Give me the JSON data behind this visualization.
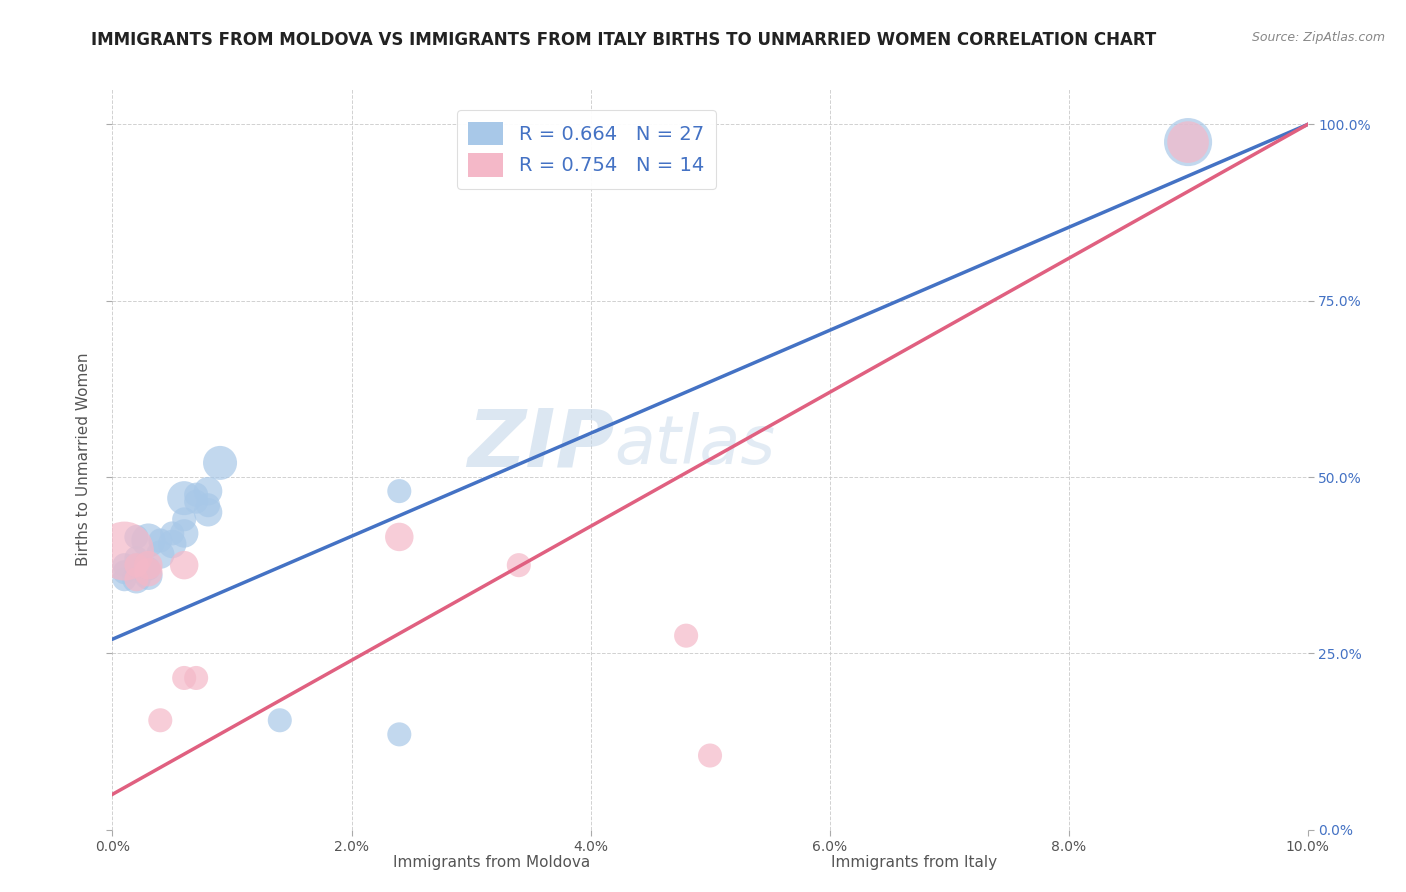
{
  "title": "IMMIGRANTS FROM MOLDOVA VS IMMIGRANTS FROM ITALY BIRTHS TO UNMARRIED WOMEN CORRELATION CHART",
  "source": "Source: ZipAtlas.com",
  "ylabel": "Births to Unmarried Women",
  "x_label_moldova": "Immigrants from Moldova",
  "x_label_italy": "Immigrants from Italy",
  "xmin": 0.0,
  "xmax": 0.1,
  "ymin": 0.0,
  "ymax": 1.05,
  "yticks": [
    0.0,
    0.25,
    0.5,
    0.75,
    1.0
  ],
  "ytick_labels": [
    "0.0%",
    "25.0%",
    "50.0%",
    "75.0%",
    "100.0%"
  ],
  "xticks": [
    0.0,
    0.02,
    0.04,
    0.06,
    0.08,
    0.1
  ],
  "xtick_labels": [
    "0.0%",
    "2.0%",
    "4.0%",
    "6.0%",
    "8.0%",
    "10.0%"
  ],
  "moldova_color": "#a8c8e8",
  "italy_color": "#f4b8c8",
  "moldova_R": 0.664,
  "moldova_N": 27,
  "italy_R": 0.754,
  "italy_N": 14,
  "watermark_zip": "ZIP",
  "watermark_atlas": "atlas",
  "background_color": "#ffffff",
  "grid_color": "#cccccc",
  "moldova_scatter_x": [
    0.001,
    0.001,
    0.001,
    0.002,
    0.002,
    0.002,
    0.002,
    0.003,
    0.003,
    0.003,
    0.004,
    0.004,
    0.005,
    0.005,
    0.006,
    0.006,
    0.006,
    0.007,
    0.007,
    0.008,
    0.008,
    0.008,
    0.009,
    0.014,
    0.024,
    0.024,
    0.09
  ],
  "moldova_scatter_y": [
    0.355,
    0.365,
    0.375,
    0.355,
    0.375,
    0.385,
    0.415,
    0.36,
    0.37,
    0.41,
    0.39,
    0.41,
    0.405,
    0.42,
    0.42,
    0.44,
    0.47,
    0.465,
    0.475,
    0.45,
    0.46,
    0.48,
    0.52,
    0.155,
    0.48,
    0.135,
    0.975
  ],
  "moldova_scatter_size": [
    25,
    25,
    25,
    35,
    25,
    25,
    25,
    35,
    25,
    50,
    35,
    25,
    35,
    25,
    35,
    25,
    50,
    25,
    25,
    35,
    25,
    35,
    50,
    25,
    25,
    25,
    100
  ],
  "italy_scatter_x": [
    0.001,
    0.002,
    0.002,
    0.003,
    0.003,
    0.004,
    0.006,
    0.006,
    0.007,
    0.024,
    0.034,
    0.048,
    0.05,
    0.09
  ],
  "italy_scatter_y": [
    0.395,
    0.355,
    0.375,
    0.365,
    0.375,
    0.155,
    0.215,
    0.375,
    0.215,
    0.415,
    0.375,
    0.275,
    0.105,
    0.975
  ],
  "italy_scatter_size": [
    150,
    25,
    25,
    35,
    35,
    25,
    25,
    35,
    25,
    35,
    25,
    25,
    25,
    75
  ],
  "moldova_line_color": "#4472c4",
  "italy_line_color": "#e06080",
  "moldova_line_x0": 0.0,
  "moldova_line_y0": 0.27,
  "moldova_line_x1": 0.1,
  "moldova_line_y1": 1.0,
  "italy_line_x0": 0.0,
  "italy_line_y0": 0.05,
  "italy_line_x1": 0.1,
  "italy_line_y1": 1.0,
  "title_fontsize": 12,
  "axis_label_fontsize": 11,
  "tick_fontsize": 10,
  "legend_fontsize": 14
}
